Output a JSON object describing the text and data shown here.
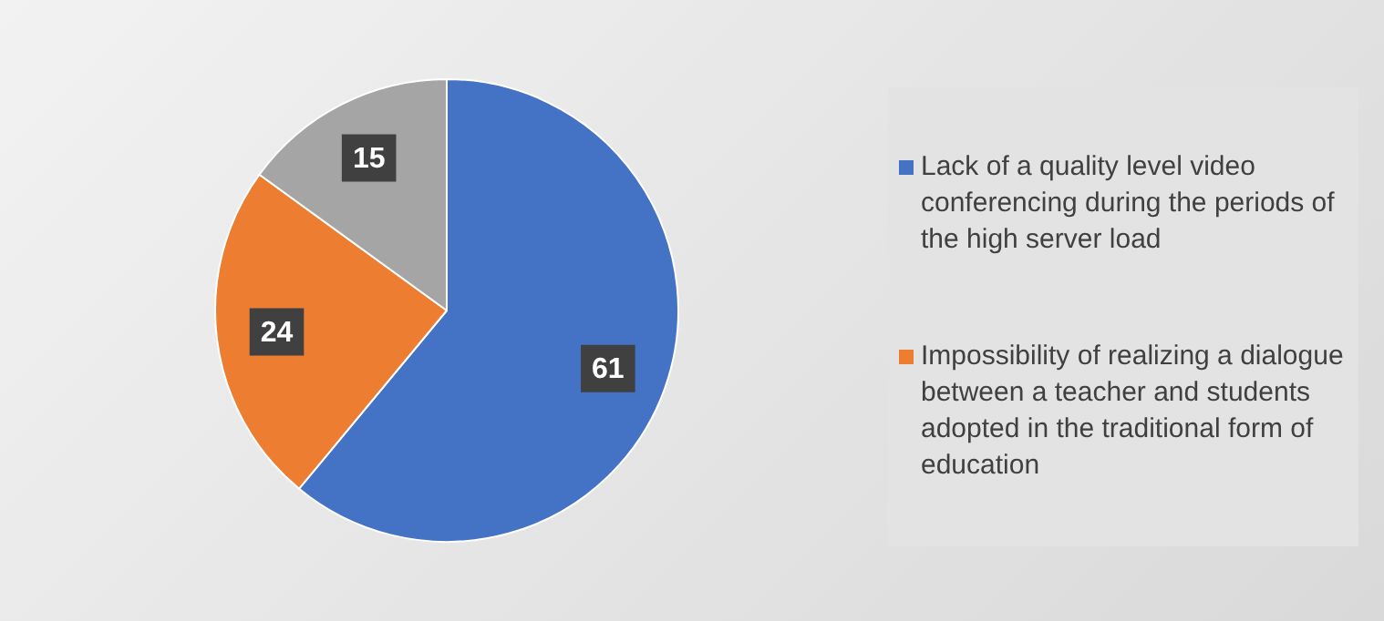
{
  "chart_data": {
    "type": "pie",
    "categories": [
      "Lack of a quality level video conferencing during the periods of the high server load",
      "Impossibility of realizing a dialogue between a teacher and students adopted in the traditional form of education",
      null
    ],
    "values": [
      61,
      24,
      15
    ],
    "colors": [
      "#4472c4",
      "#ed7d31",
      "#a5a5a5"
    ],
    "data_labels": true,
    "legend": "right"
  }
}
